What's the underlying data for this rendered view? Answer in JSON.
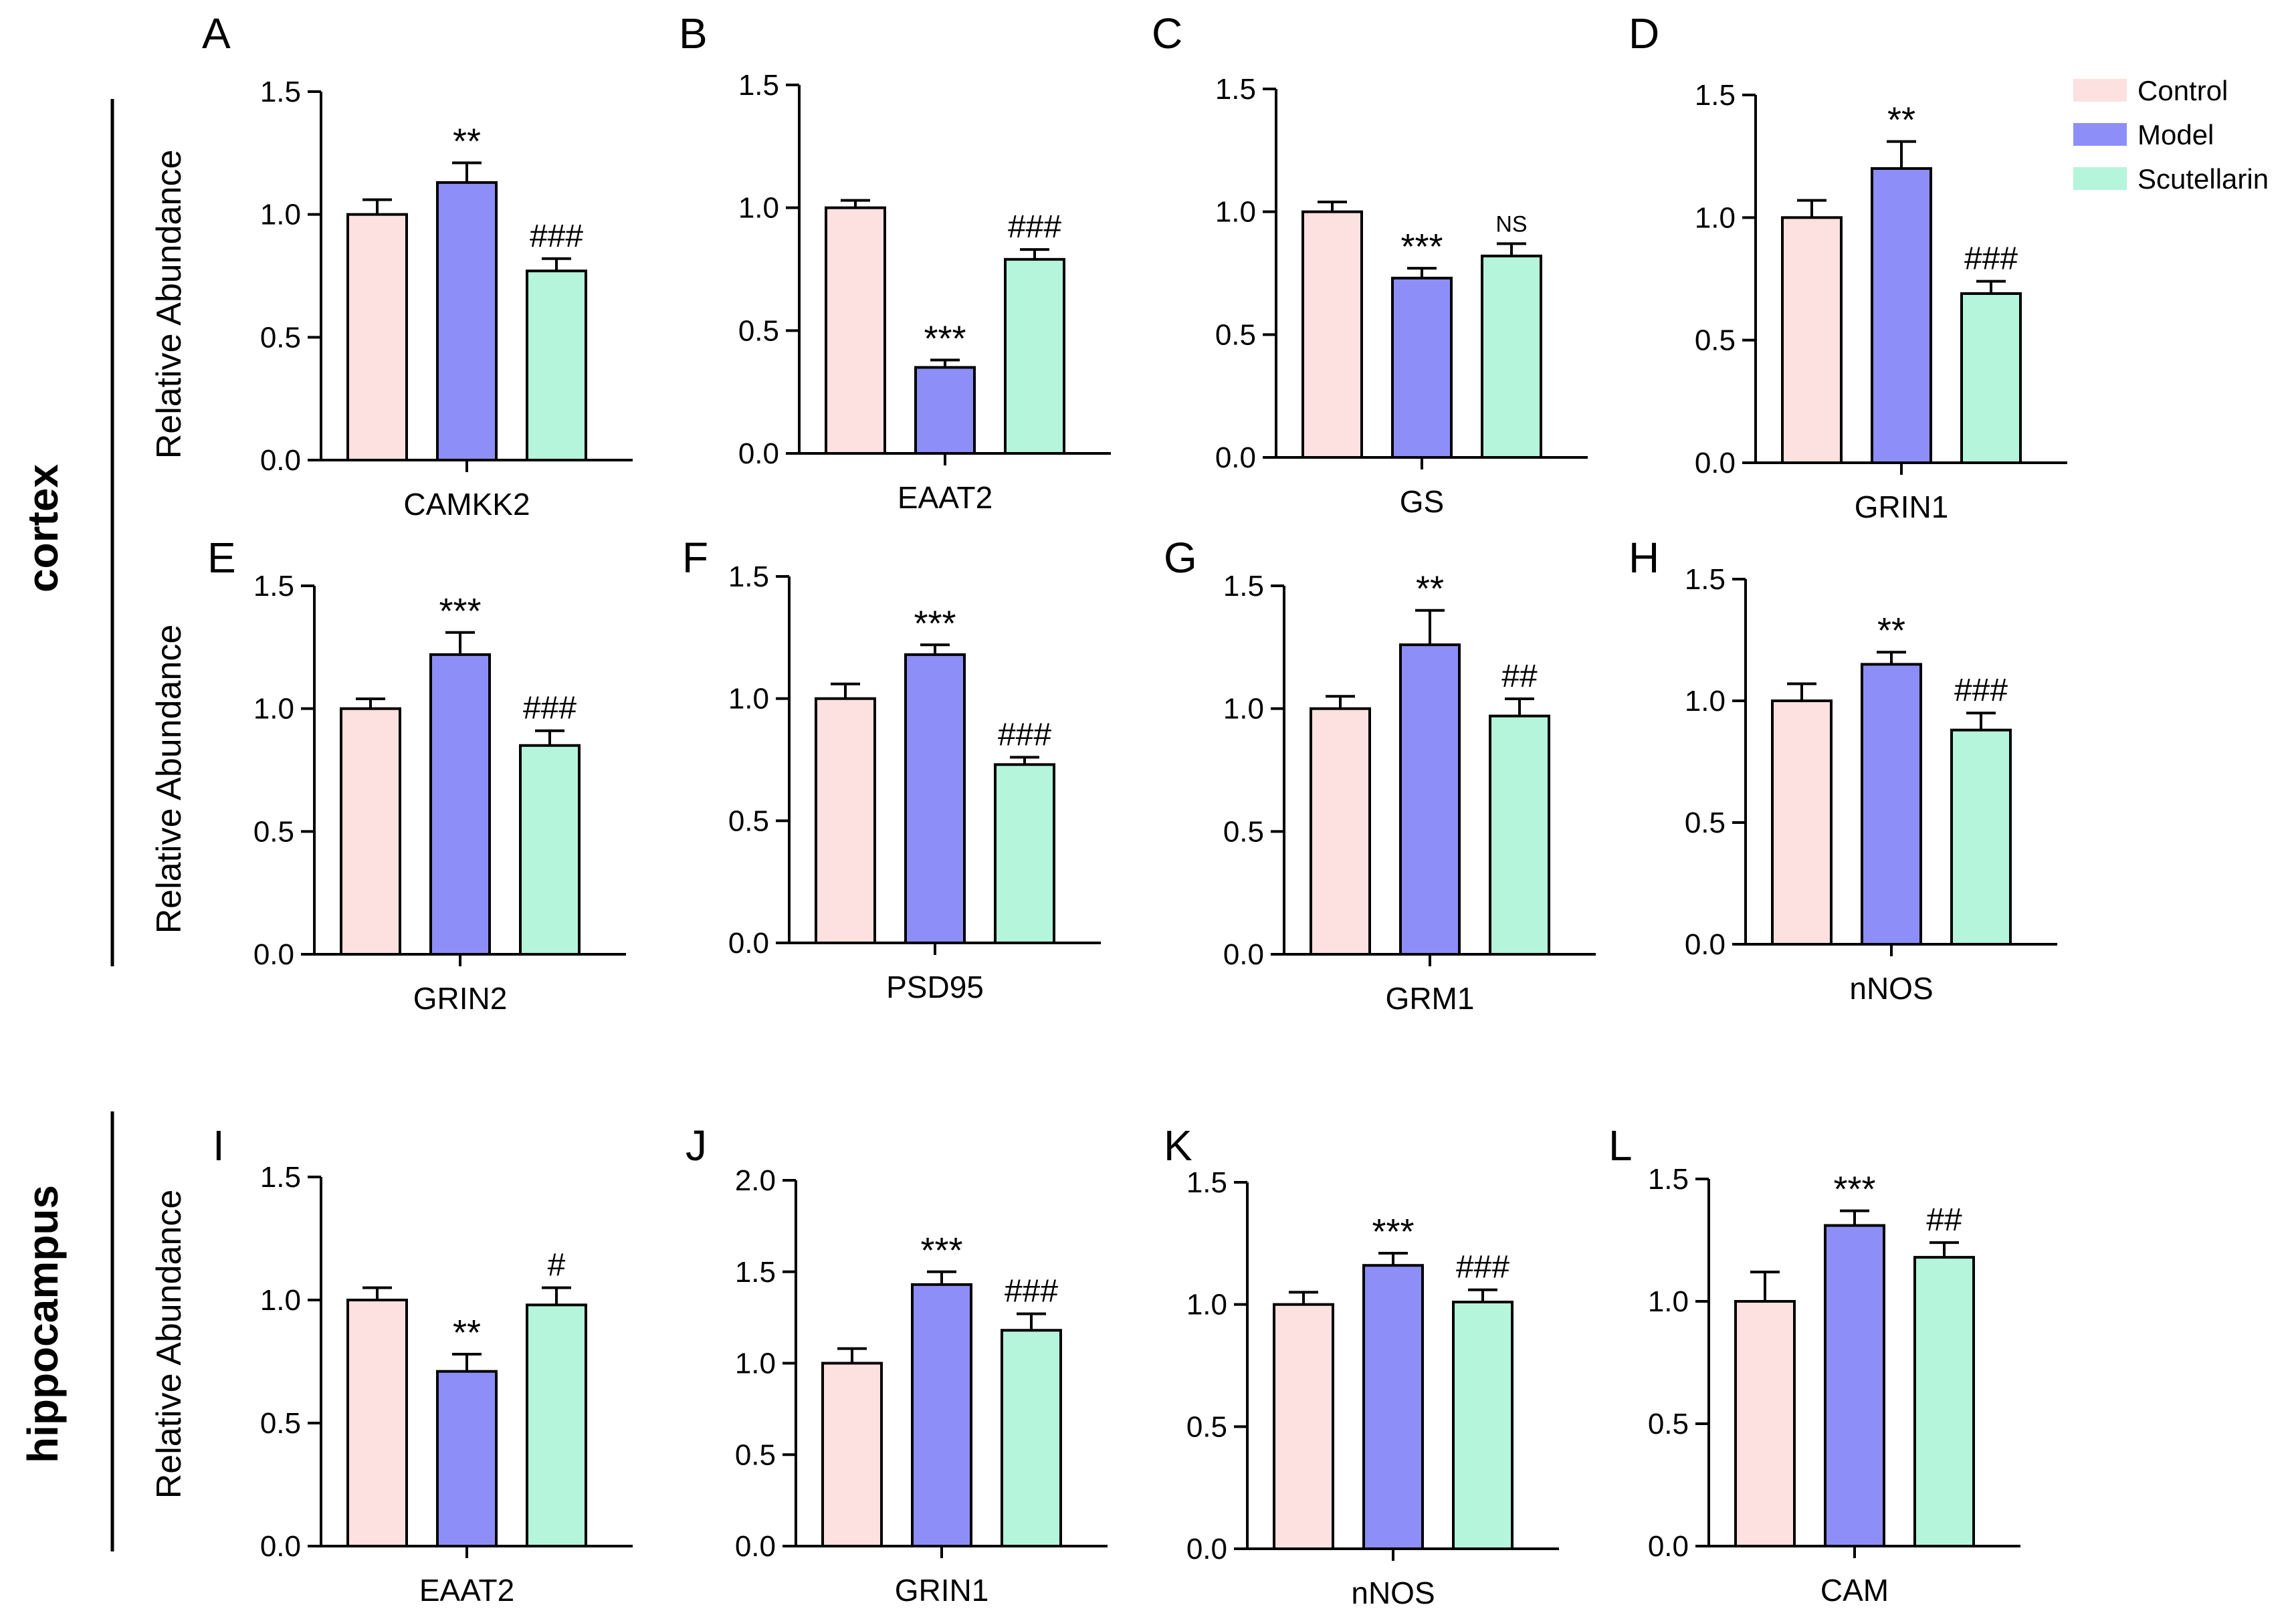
{
  "figure": {
    "section_labels": [
      "cortex",
      "hippocampus"
    ],
    "y_axis_label": "Relative Abundance",
    "legend": [
      {
        "label": "Control",
        "color": "#fde0e0"
      },
      {
        "label": "Model",
        "color": "#8e8ef8"
      },
      {
        "label": "Scutellarin",
        "color": "#b4f5dc"
      }
    ]
  },
  "chart_data": [
    {
      "panel": "A",
      "type": "bar",
      "xlabel": "CAMKK2",
      "ylim": [
        0,
        1.5
      ],
      "ticks": [
        "0.0",
        "0.5",
        "1.0",
        "1.5"
      ],
      "categories": [
        "Control",
        "Model",
        "Scutellarin"
      ],
      "values": [
        1.0,
        1.13,
        0.77
      ],
      "errors": [
        0.06,
        0.08,
        0.05
      ],
      "annotations": [
        "",
        "**",
        "###"
      ]
    },
    {
      "panel": "B",
      "type": "bar",
      "xlabel": "EAAT2",
      "ylim": [
        0,
        1.5
      ],
      "ticks": [
        "0.0",
        "0.5",
        "1.0",
        "1.5"
      ],
      "categories": [
        "Control",
        "Model",
        "Scutellarin"
      ],
      "values": [
        1.0,
        0.35,
        0.79
      ],
      "errors": [
        0.03,
        0.03,
        0.04
      ],
      "annotations": [
        "",
        "***",
        "###"
      ]
    },
    {
      "panel": "C",
      "type": "bar",
      "xlabel": "GS",
      "ylim": [
        0,
        1.5
      ],
      "ticks": [
        "0.0",
        "0.5",
        "1.0",
        "1.5"
      ],
      "categories": [
        "Control",
        "Model",
        "Scutellarin"
      ],
      "values": [
        1.0,
        0.73,
        0.82
      ],
      "errors": [
        0.04,
        0.04,
        0.05
      ],
      "annotations": [
        "",
        "***",
        "NS"
      ]
    },
    {
      "panel": "D",
      "type": "bar",
      "xlabel": "GRIN1",
      "ylim": [
        0,
        1.5
      ],
      "ticks": [
        "0.0",
        "0.5",
        "1.0",
        "1.5"
      ],
      "categories": [
        "Control",
        "Model",
        "Scutellarin"
      ],
      "values": [
        1.0,
        1.2,
        0.69
      ],
      "errors": [
        0.07,
        0.11,
        0.05
      ],
      "annotations": [
        "",
        "**",
        "###"
      ]
    },
    {
      "panel": "E",
      "type": "bar",
      "xlabel": "GRIN2",
      "ylim": [
        0,
        1.5
      ],
      "ticks": [
        "0.0",
        "0.5",
        "1.0",
        "1.5"
      ],
      "categories": [
        "Control",
        "Model",
        "Scutellarin"
      ],
      "values": [
        1.0,
        1.22,
        0.85
      ],
      "errors": [
        0.04,
        0.09,
        0.06
      ],
      "annotations": [
        "",
        "***",
        "###"
      ]
    },
    {
      "panel": "F",
      "type": "bar",
      "xlabel": "PSD95",
      "ylim": [
        0,
        1.5
      ],
      "ticks": [
        "0.0",
        "0.5",
        "1.0",
        "1.5"
      ],
      "categories": [
        "Control",
        "Model",
        "Scutellarin"
      ],
      "values": [
        1.0,
        1.18,
        0.73
      ],
      "errors": [
        0.06,
        0.04,
        0.03
      ],
      "annotations": [
        "",
        "***",
        "###"
      ]
    },
    {
      "panel": "G",
      "type": "bar",
      "xlabel": "GRM1",
      "ylim": [
        0,
        1.5
      ],
      "ticks": [
        "0.0",
        "0.5",
        "1.0",
        "1.5"
      ],
      "categories": [
        "Control",
        "Model",
        "Scutellarin"
      ],
      "values": [
        1.0,
        1.26,
        0.97
      ],
      "errors": [
        0.05,
        0.14,
        0.07
      ],
      "annotations": [
        "",
        "**",
        "##"
      ]
    },
    {
      "panel": "H",
      "type": "bar",
      "xlabel": "nNOS",
      "ylim": [
        0,
        1.5
      ],
      "ticks": [
        "0.0",
        "0.5",
        "1.0",
        "1.5"
      ],
      "categories": [
        "Control",
        "Model",
        "Scutellarin"
      ],
      "values": [
        1.0,
        1.15,
        0.88
      ],
      "errors": [
        0.07,
        0.05,
        0.07
      ],
      "annotations": [
        "",
        "**",
        "###"
      ]
    },
    {
      "panel": "I",
      "type": "bar",
      "xlabel": "EAAT2",
      "ylim": [
        0,
        1.5
      ],
      "ticks": [
        "0.0",
        "0.5",
        "1.0",
        "1.5"
      ],
      "categories": [
        "Control",
        "Model",
        "Scutellarin"
      ],
      "values": [
        1.0,
        0.71,
        0.98
      ],
      "errors": [
        0.05,
        0.07,
        0.07
      ],
      "annotations": [
        "",
        "**",
        "#"
      ]
    },
    {
      "panel": "J",
      "type": "bar",
      "xlabel": "GRIN1",
      "ylim": [
        0,
        2.0
      ],
      "ticks": [
        "0.0",
        "0.5",
        "1.0",
        "1.5",
        "2.0"
      ],
      "categories": [
        "Control",
        "Model",
        "Scutellarin"
      ],
      "values": [
        1.0,
        1.43,
        1.18
      ],
      "errors": [
        0.08,
        0.07,
        0.09
      ],
      "annotations": [
        "",
        "***",
        "###"
      ]
    },
    {
      "panel": "K",
      "type": "bar",
      "xlabel": "nNOS",
      "ylim": [
        0,
        1.5
      ],
      "ticks": [
        "0.0",
        "0.5",
        "1.0",
        "1.5"
      ],
      "categories": [
        "Control",
        "Model",
        "Scutellarin"
      ],
      "values": [
        1.0,
        1.16,
        1.01
      ],
      "errors": [
        0.05,
        0.05,
        0.05
      ],
      "annotations": [
        "",
        "***",
        "###"
      ]
    },
    {
      "panel": "L",
      "type": "bar",
      "xlabel": "CAM",
      "ylim": [
        0,
        1.5
      ],
      "ticks": [
        "0.0",
        "0.5",
        "1.0",
        "1.5"
      ],
      "categories": [
        "Control",
        "Model",
        "Scutellarin"
      ],
      "values": [
        1.0,
        1.31,
        1.18
      ],
      "errors": [
        0.12,
        0.06,
        0.06
      ],
      "annotations": [
        "",
        "***",
        "##"
      ]
    }
  ]
}
